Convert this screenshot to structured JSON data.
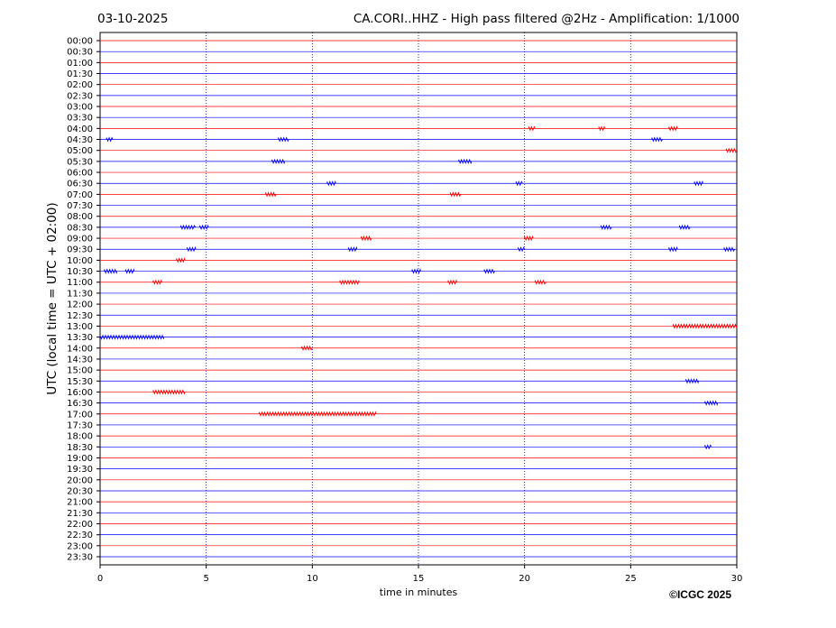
{
  "chart_data": {
    "type": "helicorder",
    "date": "03-10-2025",
    "title": "CA.CORI..HHZ - High pass filtered @2Hz - Amplification: 1/1000",
    "ylabel": "UTC (local time = UTC + 02:00)",
    "xlabel": "time in minutes",
    "copyright": "©ICGC 2025",
    "categories": [
      "00:00",
      "00:30",
      "01:00",
      "01:30",
      "02:00",
      "02:30",
      "03:00",
      "03:30",
      "04:00",
      "04:30",
      "05:00",
      "05:30",
      "06:00",
      "06:30",
      "07:00",
      "07:30",
      "08:00",
      "08:30",
      "09:00",
      "09:30",
      "10:00",
      "10:30",
      "11:00",
      "11:30",
      "12:00",
      "12:30",
      "13:00",
      "13:30",
      "14:00",
      "14:30",
      "15:00",
      "15:30",
      "16:00",
      "16:30",
      "17:00",
      "17:30",
      "18:00",
      "18:30",
      "19:00",
      "19:30",
      "20:00",
      "20:30",
      "21:00",
      "21:30",
      "22:00",
      "22:30",
      "23:00",
      "23:30"
    ],
    "colors": [
      "#ff0000",
      "#0000ff"
    ],
    "xlim": [
      0,
      30
    ],
    "xticks": [
      0,
      5,
      10,
      15,
      20,
      25,
      30
    ],
    "grid": true,
    "events": [
      {
        "time": "04:00",
        "start": 20.2,
        "end": 20.5
      },
      {
        "time": "04:00",
        "start": 23.5,
        "end": 23.8
      },
      {
        "time": "04:00",
        "start": 26.8,
        "end": 27.2
      },
      {
        "time": "04:30",
        "start": 0.3,
        "end": 0.6
      },
      {
        "time": "04:30",
        "start": 8.4,
        "end": 8.9
      },
      {
        "time": "04:30",
        "start": 26.0,
        "end": 26.5
      },
      {
        "time": "05:00",
        "start": 29.5,
        "end": 30
      },
      {
        "time": "05:30",
        "start": 8.1,
        "end": 8.7
      },
      {
        "time": "05:30",
        "start": 16.9,
        "end": 17.5
      },
      {
        "time": "06:30",
        "start": 10.7,
        "end": 11.1
      },
      {
        "time": "06:30",
        "start": 19.6,
        "end": 19.9
      },
      {
        "time": "06:30",
        "start": 28.0,
        "end": 28.4
      },
      {
        "time": "07:00",
        "start": 7.8,
        "end": 8.3
      },
      {
        "time": "07:00",
        "start": 16.5,
        "end": 17.0
      },
      {
        "time": "08:30",
        "start": 3.8,
        "end": 4.5
      },
      {
        "time": "08:30",
        "start": 4.7,
        "end": 5.1
      },
      {
        "time": "08:30",
        "start": 23.6,
        "end": 24.1
      },
      {
        "time": "08:30",
        "start": 27.3,
        "end": 27.8
      },
      {
        "time": "09:00",
        "start": 12.3,
        "end": 12.8
      },
      {
        "time": "09:00",
        "start": 20.0,
        "end": 20.4
      },
      {
        "time": "09:30",
        "start": 4.1,
        "end": 4.5
      },
      {
        "time": "09:30",
        "start": 11.7,
        "end": 12.1
      },
      {
        "time": "09:30",
        "start": 19.7,
        "end": 20.0
      },
      {
        "time": "09:30",
        "start": 26.8,
        "end": 27.2
      },
      {
        "time": "09:30",
        "start": 29.4,
        "end": 29.9
      },
      {
        "time": "10:00",
        "start": 3.6,
        "end": 4.0
      },
      {
        "time": "10:30",
        "start": 0.2,
        "end": 0.8
      },
      {
        "time": "10:30",
        "start": 1.2,
        "end": 1.6
      },
      {
        "time": "10:30",
        "start": 14.7,
        "end": 15.1
      },
      {
        "time": "10:30",
        "start": 18.1,
        "end": 18.6
      },
      {
        "time": "11:00",
        "start": 2.5,
        "end": 2.9
      },
      {
        "time": "11:00",
        "start": 11.3,
        "end": 12.2
      },
      {
        "time": "11:00",
        "start": 16.4,
        "end": 16.8
      },
      {
        "time": "11:00",
        "start": 20.5,
        "end": 21.0
      },
      {
        "time": "13:00",
        "start": 27.0,
        "end": 30
      },
      {
        "time": "13:30",
        "start": 0,
        "end": 3.0
      },
      {
        "time": "14:00",
        "start": 9.5,
        "end": 10.0
      },
      {
        "time": "15:30",
        "start": 27.6,
        "end": 28.2
      },
      {
        "time": "16:00",
        "start": 2.5,
        "end": 4.0
      },
      {
        "time": "16:30",
        "start": 28.5,
        "end": 29.1
      },
      {
        "time": "17:00",
        "start": 7.5,
        "end": 13.0
      },
      {
        "time": "18:30",
        "start": 28.5,
        "end": 28.8
      }
    ]
  }
}
